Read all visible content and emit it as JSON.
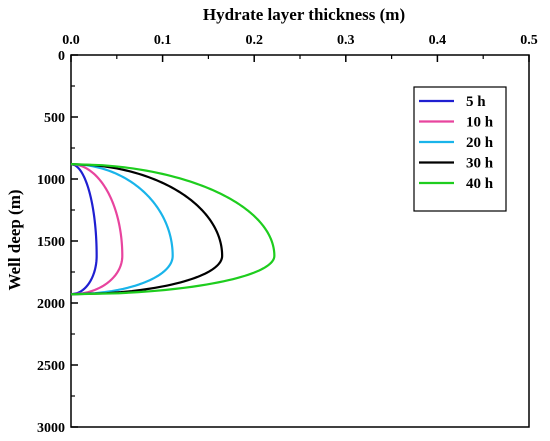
{
  "chart_data": {
    "type": "line",
    "xlabel": "Hydrate layer thickness (m)",
    "ylabel": "Well deep (m)",
    "xlim": [
      0,
      0.5
    ],
    "ylim": [
      3000,
      0
    ],
    "x_ticks": [
      "0.0",
      "0.1",
      "0.2",
      "0.3",
      "0.4",
      "0.5"
    ],
    "y_ticks": [
      "0",
      "500",
      "1000",
      "1500",
      "2000",
      "2500",
      "3000"
    ],
    "x_axis_position": "top",
    "y_axis_inverted": true,
    "grid": false,
    "legend_position": "top-right",
    "depth_range": [
      880,
      1930
    ],
    "peak_depth": 1620,
    "series": [
      {
        "name": "5 h",
        "color": "#1f1fd1",
        "max_thickness": 0.028
      },
      {
        "name": "10 h",
        "color": "#e8449e",
        "max_thickness": 0.056
      },
      {
        "name": "20 h",
        "color": "#19b4ea",
        "max_thickness": 0.111
      },
      {
        "name": "30 h",
        "color": "#000000",
        "max_thickness": 0.165
      },
      {
        "name": "40 h",
        "color": "#1ecd1e",
        "max_thickness": 0.222
      }
    ]
  }
}
